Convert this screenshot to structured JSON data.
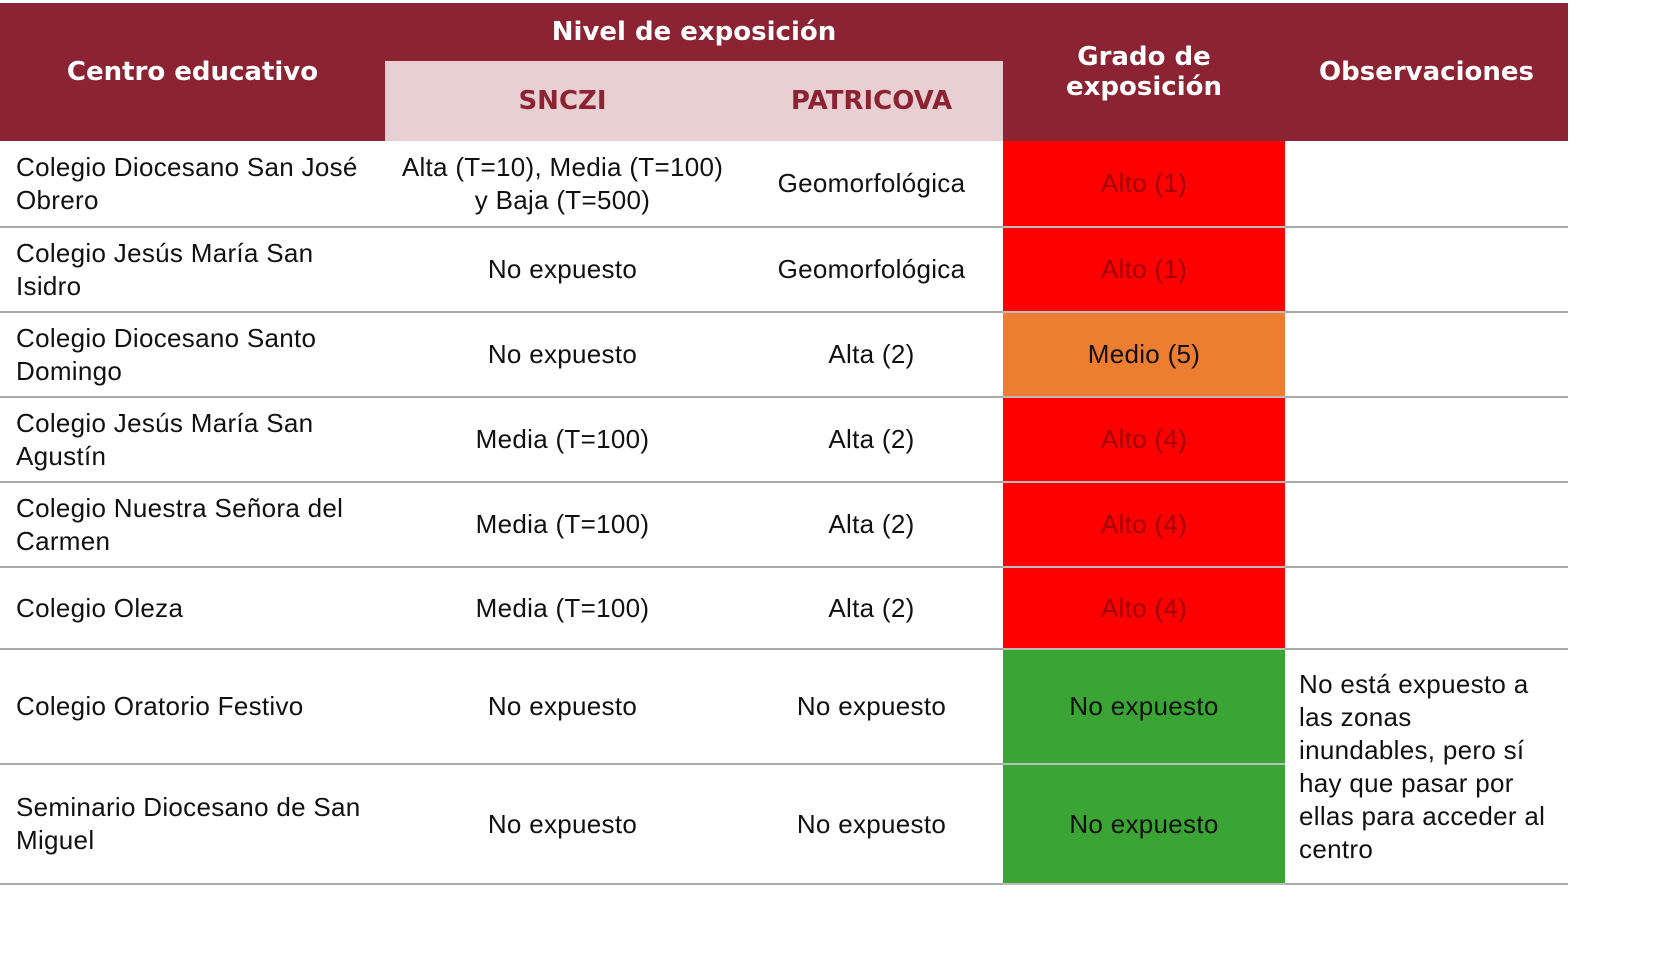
{
  "table": {
    "header": {
      "center": "Centro educativo",
      "level": "Nivel de exposición",
      "snczi": "SNCZI",
      "patricova": "PATRICOVA",
      "grade": "Grado de exposición",
      "notes": "Observaciones"
    },
    "rows": [
      [
        "Colegio Diocesano San José Obrero",
        "Alta (T=10), Media (T=100) y Baja (T=500)",
        "Geomorfológica",
        "Alto (1)"
      ],
      [
        "Colegio Jesús María San Isidro",
        "No expuesto",
        "Geomorfológica",
        "Alto (1)"
      ],
      [
        "Colegio Diocesano Santo Domingo",
        "No expuesto",
        "Alta (2)",
        "Medio (5)"
      ],
      [
        "Colegio Jesús María San Agustín",
        "Media (T=100)",
        "Alta (2)",
        "Alto (4)"
      ],
      [
        "Colegio Nuestra Señora del Carmen",
        "Media (T=100)",
        "Alta (2)",
        "Alto (4)"
      ],
      [
        "Colegio Oleza",
        "Media (T=100)",
        "Alta (2)",
        "Alto (4)"
      ],
      [
        "Colegio Oratorio Festivo",
        "No expuesto",
        "No expuesto",
        "No expuesto"
      ],
      [
        "Seminario Diocesano de San Miguel",
        "No expuesto",
        "No expuesto",
        "No expuesto"
      ]
    ],
    "grade_colors": [
      "#ff0000",
      "#ff0000",
      "#ed7d31",
      "#ff0000",
      "#ff0000",
      "#ff0000",
      "#3aa535",
      "#3aa535"
    ],
    "note": "No está expuesto a las zonas inundables, pero sí hay que pasar por ellas para acceder al centro"
  }
}
